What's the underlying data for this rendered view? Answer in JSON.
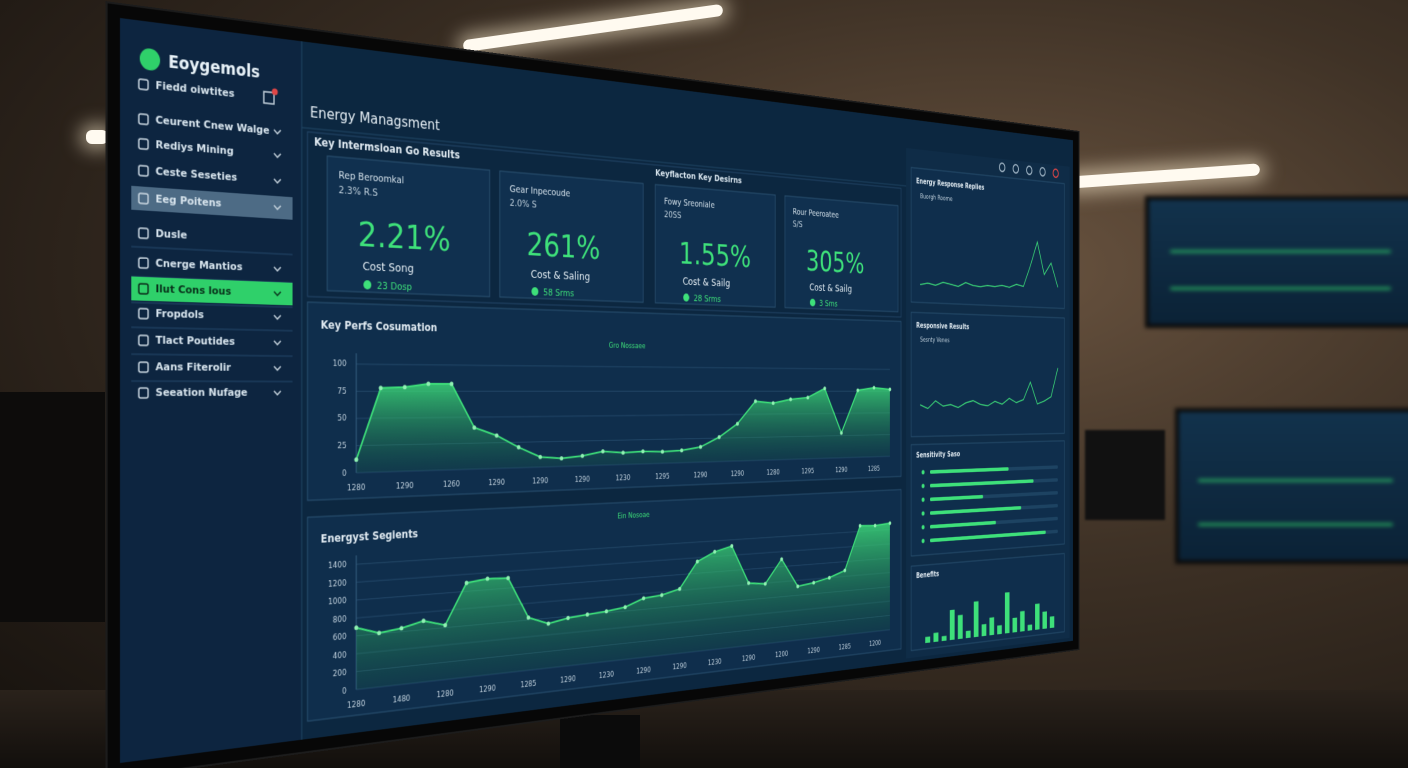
{
  "app": {
    "name": "Eoygemols"
  },
  "sidebar": {
    "items": [
      "Fiedd oiwtites",
      "Ceurent Cnew Walge",
      "Rediys Mining",
      "Ceste Seseties",
      "Eeg Poitens",
      "Dusle",
      "Cnerge Mantios",
      "Ilut Cons lous",
      "Fropdols",
      "Tlact Poutides",
      "Aans Fiterolir",
      "Seeation Nufage"
    ],
    "selected": 4,
    "highlighted": 7
  },
  "header": {
    "title": "Energy Managsment",
    "section": "Key Intermsioan Go Results",
    "kpi_group_label": "Keyflacton Key Desirns"
  },
  "kpis": [
    {
      "label": "Rep Beroomkal",
      "sub": "2.3% R.S",
      "value": "2.21%",
      "caption": "Cost Song",
      "note": "23 Dosp"
    },
    {
      "label": "Gear Inpecoude",
      "sub": "2.0% S",
      "value": "261%",
      "caption": "Cost & Saling",
      "note": "58 Srms"
    },
    {
      "label": "Fowy Sreoniale",
      "sub": "20SS",
      "value": "1.55%",
      "caption": "Cost & Sailg",
      "note": "28 Srms"
    },
    {
      "label": "Rour Peeroatee",
      "sub": "S/S",
      "value": "305%",
      "caption": "Cost & Sailg",
      "note": "3 Sms"
    }
  ],
  "chart_data": [
    {
      "type": "area",
      "title": "Key Perfs Cosumation",
      "subtitle": "Gro Nossaee",
      "color": "#3ee07a",
      "categories": [
        "1280",
        null,
        "1290",
        null,
        "1260",
        null,
        "1290",
        null,
        "1290",
        null,
        "1290",
        null,
        "1230",
        null,
        "1295",
        null,
        "1290",
        null,
        "1290",
        null,
        "1280",
        null,
        "1295",
        null,
        "1290",
        null,
        "1285",
        null
      ],
      "values": [
        12,
        78,
        79,
        82,
        82,
        40,
        32,
        20,
        10,
        8,
        10,
        14,
        12,
        13,
        12,
        13,
        16,
        26,
        40,
        64,
        62,
        66,
        68,
        78,
        28,
        76,
        79,
        77
      ],
      "ylim": [
        0,
        110
      ],
      "yticks": [
        0,
        25,
        50,
        75,
        100
      ],
      "grid": true
    },
    {
      "type": "area",
      "title": "Energyst Segients",
      "subtitle": "Ein Nosoae",
      "color": "#3ee07a",
      "categories": [
        "1280",
        null,
        "1480",
        null,
        "1280",
        null,
        "1290",
        null,
        "1285",
        null,
        "1290",
        null,
        "1230",
        null,
        "1290",
        null,
        "1290",
        null,
        "1230",
        null,
        "1290",
        null,
        "1200",
        null,
        "1290",
        null,
        "1285",
        null,
        "1200",
        null
      ],
      "values": [
        690,
        610,
        640,
        700,
        630,
        1100,
        1130,
        1120,
        630,
        535,
        580,
        600,
        620,
        650,
        740,
        760,
        820,
        1150,
        1260,
        1320,
        820,
        790,
        1100,
        720,
        750,
        800,
        880,
        1480,
        1470,
        1490
      ],
      "ylim": [
        0,
        1500
      ],
      "yticks": [
        0,
        200,
        400,
        600,
        800,
        1000,
        1200,
        1400
      ],
      "grid": true
    },
    {
      "type": "line",
      "title": "Energy Response Replies",
      "subtitle": "Buorgh Roome",
      "color": "#3ee07a",
      "values": [
        10,
        12,
        10,
        14,
        12,
        10,
        15,
        12,
        11,
        13,
        12,
        14,
        12,
        16,
        14,
        40,
        70,
        30,
        45,
        15
      ],
      "ylim": [
        0,
        100
      ]
    },
    {
      "type": "line",
      "title": "Responsive Results",
      "subtitle": "Sesnty Venes",
      "color": "#3ee07a",
      "values": [
        30,
        25,
        35,
        28,
        30,
        26,
        32,
        35,
        30,
        28,
        34,
        30,
        38,
        32,
        36,
        60,
        30,
        34,
        40,
        80
      ],
      "ylim": [
        0,
        100
      ]
    },
    {
      "type": "hbar",
      "title": "Sensitivity Saso",
      "color": "#3ee07a",
      "values": [
        60,
        80,
        40,
        70,
        50,
        90
      ],
      "ylim": [
        0,
        100
      ]
    },
    {
      "type": "bar",
      "title": "Benefits",
      "color": "#3ee07a",
      "values": [
        10,
        15,
        8,
        50,
        40,
        12,
        60,
        20,
        30,
        15,
        70,
        25,
        35,
        10,
        45,
        30,
        20
      ],
      "ylim": [
        0,
        100
      ]
    }
  ]
}
